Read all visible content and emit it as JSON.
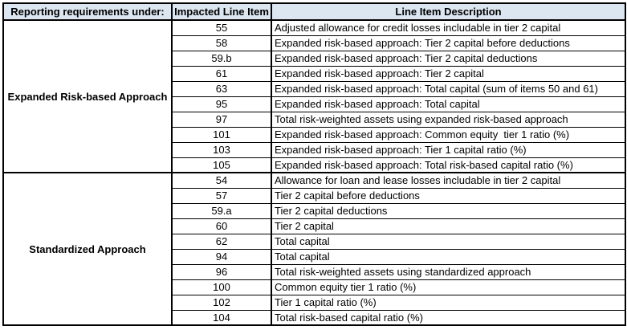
{
  "table": {
    "headers": [
      "Reporting requirements under:",
      "Impacted Line Item",
      "Line Item Description"
    ],
    "groups": [
      {
        "label": "Expanded Risk-based Approach",
        "rows": [
          {
            "item": "55",
            "description": "Adjusted allowance for credit losses includable in tier 2 capital"
          },
          {
            "item": "58",
            "description": "Expanded risk-based approach: Tier 2 capital before deductions"
          },
          {
            "item": "59.b",
            "description": "Expanded risk-based approach: Tier 2 capital deductions"
          },
          {
            "item": "61",
            "description": "Expanded risk-based approach: Tier 2 capital"
          },
          {
            "item": "63",
            "description": "Expanded risk-based approach: Total capital (sum of items 50 and 61)"
          },
          {
            "item": "95",
            "description": "Expanded risk-based approach: Total capital"
          },
          {
            "item": "97",
            "description": "Total risk-weighted assets using expanded risk-based approach"
          },
          {
            "item": "101",
            "description": "Expanded risk-based approach: Common equity  tier 1 ratio (%)"
          },
          {
            "item": "103",
            "description": "Expanded risk-based approach: Tier 1 capital ratio (%)"
          },
          {
            "item": "105",
            "description": "Expanded risk-based approach: Total risk-based capital ratio (%)"
          }
        ]
      },
      {
        "label": "Standardized Approach",
        "rows": [
          {
            "item": "54",
            "description": "Allowance for loan and lease losses includable in tier 2 capital"
          },
          {
            "item": "57",
            "description": "Tier 2 capital before deductions"
          },
          {
            "item": "59.a",
            "description": "Tier 2 capital deductions"
          },
          {
            "item": "60",
            "description": "Tier 2 capital"
          },
          {
            "item": "62",
            "description": "Total capital"
          },
          {
            "item": "94",
            "description": "Total capital"
          },
          {
            "item": "96",
            "description": "Total risk-weighted assets using standardized approach"
          },
          {
            "item": "100",
            "description": "Common equity tier 1 ratio (%)"
          },
          {
            "item": "102",
            "description": "Tier 1 capital ratio (%)"
          },
          {
            "item": "104",
            "description": "Total risk-based capital ratio (%)"
          }
        ]
      }
    ],
    "colors": {
      "header_fill": "#DCE6F1",
      "border": "#000000",
      "text": "#000000"
    }
  }
}
